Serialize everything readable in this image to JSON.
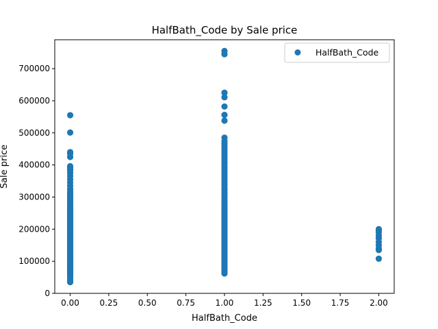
{
  "chart_data": {
    "type": "scatter",
    "title": "HalfBath_Code by Sale price",
    "xlabel": "HalfBath_Code",
    "ylabel": "Sale price",
    "xlim": [
      -0.1,
      2.1
    ],
    "ylim": [
      0,
      790000
    ],
    "x_ticks": [
      0.0,
      0.25,
      0.5,
      0.75,
      1.0,
      1.25,
      1.5,
      1.75,
      2.0
    ],
    "x_tick_labels": [
      "0.00",
      "0.25",
      "0.50",
      "0.75",
      "1.00",
      "1.25",
      "1.50",
      "1.75",
      "2.00"
    ],
    "y_ticks": [
      0,
      100000,
      200000,
      300000,
      400000,
      500000,
      600000,
      700000
    ],
    "y_tick_labels": [
      "0",
      "100000",
      "200000",
      "300000",
      "400000",
      "500000",
      "600000",
      "700000"
    ],
    "grid": false,
    "legend": {
      "position": "top-right"
    },
    "color": "#1f77b4",
    "series": [
      {
        "name": "HalfBath_Code",
        "points": [
          [
            0,
            34900
          ],
          [
            0,
            37900
          ],
          [
            0,
            40000
          ],
          [
            0,
            45000
          ],
          [
            0,
            52000
          ],
          [
            0,
            55000
          ],
          [
            0,
            60000
          ],
          [
            0,
            62000
          ],
          [
            0,
            65000
          ],
          [
            0,
            68000
          ],
          [
            0,
            72000
          ],
          [
            0,
            75000
          ],
          [
            0,
            78000
          ],
          [
            0,
            80000
          ],
          [
            0,
            83000
          ],
          [
            0,
            86000
          ],
          [
            0,
            88000
          ],
          [
            0,
            90000
          ],
          [
            0,
            93000
          ],
          [
            0,
            96000
          ],
          [
            0,
            100000
          ],
          [
            0,
            103000
          ],
          [
            0,
            106000
          ],
          [
            0,
            110000
          ],
          [
            0,
            113000
          ],
          [
            0,
            116000
          ],
          [
            0,
            120000
          ],
          [
            0,
            123000
          ],
          [
            0,
            126000
          ],
          [
            0,
            130000
          ],
          [
            0,
            133000
          ],
          [
            0,
            136000
          ],
          [
            0,
            140000
          ],
          [
            0,
            143000
          ],
          [
            0,
            146000
          ],
          [
            0,
            150000
          ],
          [
            0,
            153000
          ],
          [
            0,
            156000
          ],
          [
            0,
            160000
          ],
          [
            0,
            163000
          ],
          [
            0,
            166000
          ],
          [
            0,
            170000
          ],
          [
            0,
            173000
          ],
          [
            0,
            176000
          ],
          [
            0,
            180000
          ],
          [
            0,
            183000
          ],
          [
            0,
            186000
          ],
          [
            0,
            190000
          ],
          [
            0,
            193000
          ],
          [
            0,
            196000
          ],
          [
            0,
            200000
          ],
          [
            0,
            204000
          ],
          [
            0,
            208000
          ],
          [
            0,
            212000
          ],
          [
            0,
            216000
          ],
          [
            0,
            220000
          ],
          [
            0,
            224000
          ],
          [
            0,
            228000
          ],
          [
            0,
            232000
          ],
          [
            0,
            236000
          ],
          [
            0,
            240000
          ],
          [
            0,
            244000
          ],
          [
            0,
            248000
          ],
          [
            0,
            252000
          ],
          [
            0,
            256000
          ],
          [
            0,
            260000
          ],
          [
            0,
            265000
          ],
          [
            0,
            270000
          ],
          [
            0,
            275000
          ],
          [
            0,
            280000
          ],
          [
            0,
            285000
          ],
          [
            0,
            290000
          ],
          [
            0,
            295000
          ],
          [
            0,
            300000
          ],
          [
            0,
            306000
          ],
          [
            0,
            312000
          ],
          [
            0,
            318000
          ],
          [
            0,
            325000
          ],
          [
            0,
            335000
          ],
          [
            0,
            345000
          ],
          [
            0,
            355000
          ],
          [
            0,
            365000
          ],
          [
            0,
            375000
          ],
          [
            0,
            383000
          ],
          [
            0,
            388000
          ],
          [
            0,
            392000
          ],
          [
            0,
            396000
          ],
          [
            0,
            425000
          ],
          [
            0,
            435000
          ],
          [
            0,
            440000
          ],
          [
            0,
            501000
          ],
          [
            0,
            555000
          ],
          [
            1,
            62000
          ],
          [
            1,
            68000
          ],
          [
            1,
            75000
          ],
          [
            1,
            82000
          ],
          [
            1,
            88000
          ],
          [
            1,
            95000
          ],
          [
            1,
            102000
          ],
          [
            1,
            108000
          ],
          [
            1,
            114000
          ],
          [
            1,
            120000
          ],
          [
            1,
            126000
          ],
          [
            1,
            132000
          ],
          [
            1,
            138000
          ],
          [
            1,
            144000
          ],
          [
            1,
            150000
          ],
          [
            1,
            156000
          ],
          [
            1,
            162000
          ],
          [
            1,
            168000
          ],
          [
            1,
            174000
          ],
          [
            1,
            180000
          ],
          [
            1,
            186000
          ],
          [
            1,
            192000
          ],
          [
            1,
            198000
          ],
          [
            1,
            204000
          ],
          [
            1,
            210000
          ],
          [
            1,
            216000
          ],
          [
            1,
            222000
          ],
          [
            1,
            228000
          ],
          [
            1,
            234000
          ],
          [
            1,
            240000
          ],
          [
            1,
            246000
          ],
          [
            1,
            252000
          ],
          [
            1,
            258000
          ],
          [
            1,
            264000
          ],
          [
            1,
            270000
          ],
          [
            1,
            276000
          ],
          [
            1,
            282000
          ],
          [
            1,
            290000
          ],
          [
            1,
            298000
          ],
          [
            1,
            306000
          ],
          [
            1,
            314000
          ],
          [
            1,
            322000
          ],
          [
            1,
            330000
          ],
          [
            1,
            338000
          ],
          [
            1,
            346000
          ],
          [
            1,
            354000
          ],
          [
            1,
            362000
          ],
          [
            1,
            370000
          ],
          [
            1,
            378000
          ],
          [
            1,
            386000
          ],
          [
            1,
            394000
          ],
          [
            1,
            402000
          ],
          [
            1,
            410000
          ],
          [
            1,
            418000
          ],
          [
            1,
            426000
          ],
          [
            1,
            434000
          ],
          [
            1,
            442000
          ],
          [
            1,
            450000
          ],
          [
            1,
            458000
          ],
          [
            1,
            466000
          ],
          [
            1,
            474000
          ],
          [
            1,
            485000
          ],
          [
            1,
            538000
          ],
          [
            1,
            556000
          ],
          [
            1,
            582000
          ],
          [
            1,
            611000
          ],
          [
            1,
            625000
          ],
          [
            1,
            745000
          ],
          [
            1,
            755000
          ],
          [
            2,
            108000
          ],
          [
            2,
            135000
          ],
          [
            2,
            140000
          ],
          [
            2,
            150000
          ],
          [
            2,
            160000
          ],
          [
            2,
            172000
          ],
          [
            2,
            180000
          ],
          [
            2,
            190000
          ],
          [
            2,
            195000
          ],
          [
            2,
            200000
          ]
        ]
      }
    ]
  }
}
